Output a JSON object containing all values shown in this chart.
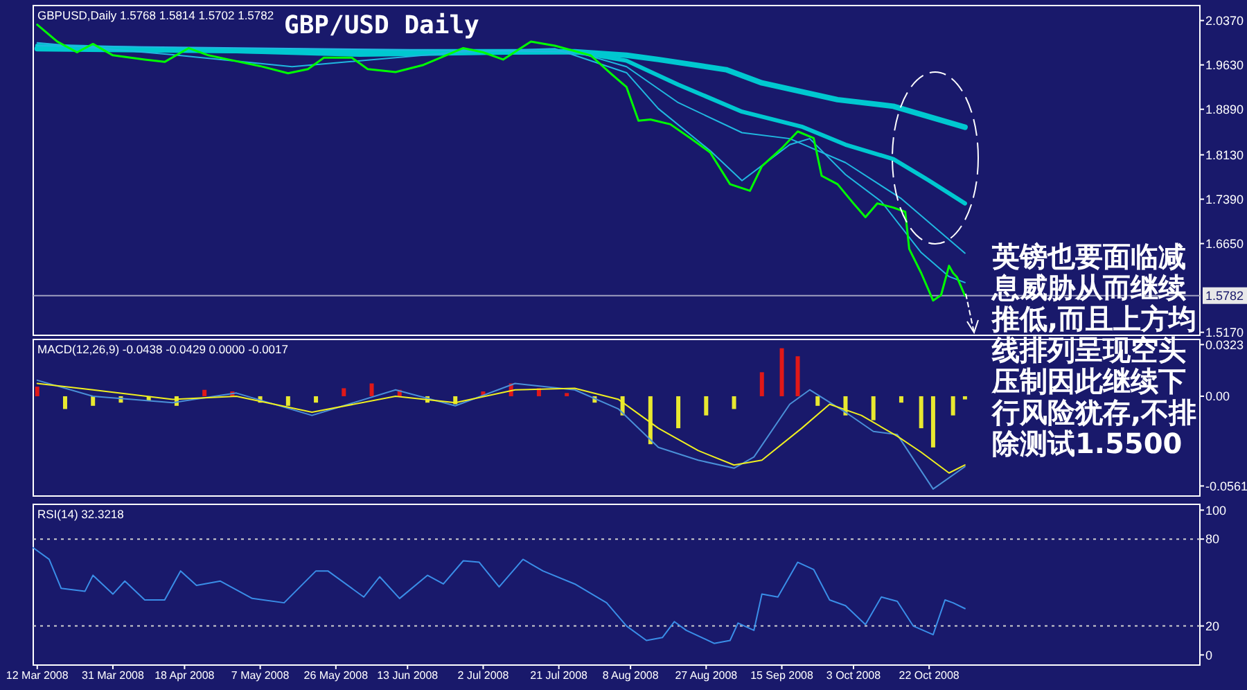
{
  "chart_data": [
    {
      "type": "line",
      "title": "GBP/USD Daily",
      "annotations": [
        "GBPUSD,Daily 1.5768 1.5814 1.5702 1.5782",
        "英镑也要面临减息威胁从而继续推低,而且上方均线排列呈现空头压制因此继续下行风险犹存,不排除测试1.5500"
      ],
      "xlim": [
        "2008-03-11",
        "2008-12-29"
      ],
      "ylim": [
        1.512,
        2.062
      ],
      "yticks": [
        {
          "value": 2.037,
          "label": "2.0370"
        },
        {
          "value": 1.963,
          "label": "1.9630"
        },
        {
          "value": 1.889,
          "label": "1.8890"
        },
        {
          "value": 1.813,
          "label": "1.8130"
        },
        {
          "value": 1.739,
          "label": "1.7390"
        },
        {
          "value": 1.665,
          "label": "1.6650"
        },
        {
          "value": 1.517,
          "label": "1.5170"
        }
      ],
      "tick_labels": "y",
      "ref_lines": [
        {
          "axis": "y",
          "value": 1.5782,
          "label": "1.5782",
          "color": "#a0a0c0"
        }
      ],
      "series": [
        {
          "color": "#00c8d0",
          "x": [
            "2008-03-12",
            "2008-06-01",
            "2008-07-25",
            "2008-08-07",
            "2008-08-15",
            "2008-09-01",
            "2008-09-10",
            "2008-09-29",
            "2008-10-13",
            "2008-10-31"
          ],
          "values": [
            1.99,
            1.985,
            1.985,
            1.979,
            1.972,
            1.955,
            1.933,
            1.905,
            1.894,
            1.859
          ]
        },
        {
          "color": "#00c8d0",
          "x": [
            "2008-03-12",
            "2008-06-01",
            "2008-07-25",
            "2008-08-07",
            "2008-08-20",
            "2008-09-05",
            "2008-09-20",
            "2008-10-01",
            "2008-10-13",
            "2008-10-22",
            "2008-10-31"
          ],
          "values": [
            1.995,
            1.98,
            1.985,
            1.97,
            1.93,
            1.885,
            1.86,
            1.83,
            1.806,
            1.77,
            1.732
          ]
        },
        {
          "color": "#20b8e0",
          "x": [
            "2008-03-12",
            "2008-07-25",
            "2008-08-07",
            "2008-08-20",
            "2008-09-05",
            "2008-09-17",
            "2008-10-01",
            "2008-10-15",
            "2008-10-31"
          ],
          "values": [
            1.995,
            1.985,
            1.96,
            1.9,
            1.85,
            1.84,
            1.8,
            1.74,
            1.649
          ]
        },
        {
          "color": "#20b8e0",
          "x": [
            "2008-03-12",
            "2008-04-15",
            "2008-05-15",
            "2008-06-27",
            "2008-07-20",
            "2008-08-07",
            "2008-08-15",
            "2008-08-28",
            "2008-09-05",
            "2008-09-17",
            "2008-09-22",
            "2008-10-01",
            "2008-10-10",
            "2008-10-20",
            "2008-10-27",
            "2008-10-31"
          ],
          "values": [
            2.0,
            1.98,
            1.96,
            1.985,
            1.99,
            1.95,
            1.89,
            1.82,
            1.77,
            1.83,
            1.84,
            1.78,
            1.735,
            1.65,
            1.61,
            1.6
          ]
        },
        {
          "color": "#00ff00",
          "x": [
            "2008-03-12",
            "2008-03-17",
            "2008-03-22",
            "2008-03-26",
            "2008-03-31",
            "2008-04-08",
            "2008-04-13",
            "2008-04-19",
            "2008-04-24",
            "2008-04-29",
            "2008-05-07",
            "2008-05-14",
            "2008-05-19",
            "2008-05-23",
            "2008-05-30",
            "2008-06-03",
            "2008-06-10",
            "2008-06-17",
            "2008-06-27",
            "2008-07-02",
            "2008-07-07",
            "2008-07-14",
            "2008-07-20",
            "2008-07-25",
            "2008-07-29",
            "2008-08-03",
            "2008-08-07",
            "2008-08-10",
            "2008-08-13",
            "2008-08-18",
            "2008-08-23",
            "2008-08-28",
            "2008-09-02",
            "2008-09-07",
            "2008-09-10",
            "2008-09-15",
            "2008-09-19",
            "2008-09-23",
            "2008-09-25",
            "2008-09-29",
            "2008-10-03",
            "2008-10-06",
            "2008-10-09",
            "2008-10-13",
            "2008-10-16",
            "2008-10-17",
            "2008-10-20",
            "2008-10-23",
            "2008-10-25",
            "2008-10-27",
            "2008-10-28",
            "2008-10-29",
            "2008-10-31"
          ],
          "values": [
            2.03,
            2.002,
            1.984,
            1.998,
            1.979,
            1.972,
            1.968,
            1.991,
            1.979,
            1.972,
            1.961,
            1.949,
            1.956,
            1.975,
            1.975,
            1.956,
            1.951,
            1.963,
            1.991,
            1.984,
            1.972,
            2.002,
            1.995,
            1.986,
            1.979,
            1.949,
            1.926,
            1.87,
            1.872,
            1.864,
            1.841,
            1.817,
            1.764,
            1.753,
            1.794,
            1.824,
            1.852,
            1.841,
            1.778,
            1.764,
            1.732,
            1.709,
            1.732,
            1.725,
            1.718,
            1.656,
            1.616,
            1.57,
            1.579,
            1.628,
            1.616,
            1.609,
            1.578
          ]
        }
      ]
    },
    {
      "type": "bar",
      "annotations": [
        "MACD(12,26,9) -0.0438 -0.0429 0.0000 -0.0017"
      ],
      "xlim": [
        "2008-03-11",
        "2008-12-29"
      ],
      "ylim": [
        -0.0624,
        0.0355
      ],
      "yticks": [
        0.0323,
        {
          "value": 0,
          "label": "0.00"
        },
        -0.0561
      ],
      "tick_labels": "y",
      "series": [
        {
          "x": [
            "2008-03-12",
            "2008-03-19",
            "2008-03-26",
            "2008-04-02",
            "2008-04-09",
            "2008-04-16",
            "2008-04-23",
            "2008-04-30",
            "2008-05-07",
            "2008-05-14",
            "2008-05-21",
            "2008-05-28",
            "2008-06-04",
            "2008-06-11",
            "2008-06-18",
            "2008-06-25",
            "2008-07-02",
            "2008-07-09",
            "2008-07-16",
            "2008-07-23",
            "2008-07-30",
            "2008-08-06",
            "2008-08-13",
            "2008-08-20",
            "2008-08-27",
            "2008-09-03",
            "2008-09-10",
            "2008-09-15",
            "2008-09-19",
            "2008-09-24",
            "2008-10-01",
            "2008-10-08",
            "2008-10-15",
            "2008-10-20",
            "2008-10-23",
            "2008-10-28",
            "2008-10-31"
          ],
          "values": [
            0.006,
            -0.008,
            -0.006,
            -0.004,
            -0.003,
            -0.006,
            0.004,
            0.003,
            -0.004,
            -0.006,
            -0.004,
            0.005,
            0.008,
            0.004,
            -0.004,
            -0.005,
            0.003,
            0.008,
            0.005,
            0.002,
            -0.004,
            -0.012,
            -0.03,
            -0.02,
            -0.012,
            -0.008,
            0.015,
            0.03,
            0.025,
            -0.006,
            -0.012,
            -0.015,
            -0.004,
            -0.02,
            -0.032,
            -0.012,
            -0.002
          ],
          "colors": [
            "#e01818",
            "#e8e830",
            "#e8e830",
            "#e8e830",
            "#e8e830",
            "#e8e830",
            "#e01818",
            "#e01818",
            "#e8e830",
            "#e8e830",
            "#e8e830",
            "#e01818",
            "#e01818",
            "#e01818",
            "#e8e830",
            "#e8e830",
            "#e01818",
            "#e01818",
            "#e01818",
            "#e01818",
            "#e8e830",
            "#e8e830",
            "#e8e830",
            "#e8e830",
            "#e8e830",
            "#e8e830",
            "#e01818",
            "#e01818",
            "#e01818",
            "#e8e830",
            "#e8e830",
            "#e8e830",
            "#e8e830",
            "#e8e830",
            "#e8e830",
            "#e8e830",
            "#e8e830"
          ]
        },
        {
          "type": "line",
          "color": "#4a90d8",
          "x": [
            "2008-03-12",
            "2008-03-26",
            "2008-04-15",
            "2008-05-01",
            "2008-05-20",
            "2008-06-10",
            "2008-06-25",
            "2008-07-10",
            "2008-07-25",
            "2008-08-05",
            "2008-08-15",
            "2008-08-25",
            "2008-09-03",
            "2008-09-08",
            "2008-09-17",
            "2008-09-22",
            "2008-10-01",
            "2008-10-08",
            "2008-10-14",
            "2008-10-23",
            "2008-10-31"
          ],
          "values": [
            0.01,
            0.0,
            -0.004,
            0.002,
            -0.012,
            0.004,
            -0.006,
            0.008,
            0.004,
            -0.008,
            -0.032,
            -0.04,
            -0.045,
            -0.038,
            -0.005,
            0.004,
            -0.01,
            -0.022,
            -0.024,
            -0.058,
            -0.044
          ]
        },
        {
          "type": "line",
          "color": "#f0f020",
          "x": [
            "2008-03-12",
            "2008-03-26",
            "2008-04-15",
            "2008-05-01",
            "2008-05-20",
            "2008-06-10",
            "2008-06-25",
            "2008-07-10",
            "2008-07-25",
            "2008-08-05",
            "2008-08-15",
            "2008-08-25",
            "2008-09-03",
            "2008-09-10",
            "2008-09-20",
            "2008-09-27",
            "2008-10-05",
            "2008-10-14",
            "2008-10-20",
            "2008-10-27",
            "2008-10-31"
          ],
          "values": [
            0.008,
            0.004,
            -0.002,
            0.0,
            -0.01,
            0.0,
            -0.004,
            0.004,
            0.005,
            -0.002,
            -0.02,
            -0.034,
            -0.043,
            -0.04,
            -0.02,
            -0.005,
            -0.012,
            -0.025,
            -0.035,
            -0.048,
            -0.043
          ]
        }
      ]
    },
    {
      "type": "line",
      "annotations": [
        "RSI(14) 32.3218"
      ],
      "xlim": [
        "2008-03-11",
        "2008-12-29"
      ],
      "xticks": [
        {
          "value": "2008-03-12",
          "label": "12 Mar 2008"
        },
        {
          "value": "2008-03-31",
          "label": "31 Mar 2008"
        },
        {
          "value": "2008-04-18",
          "label": "18 Apr 2008"
        },
        {
          "value": "2008-05-07",
          "label": "7 May 2008"
        },
        {
          "value": "2008-05-26",
          "label": "26 May 2008"
        },
        {
          "value": "2008-06-13",
          "label": "13 Jun 2008"
        },
        {
          "value": "2008-07-02",
          "label": "2 Jul 2008"
        },
        {
          "value": "2008-07-21",
          "label": "21 Jul 2008"
        },
        {
          "value": "2008-08-08",
          "label": "8 Aug 2008"
        },
        {
          "value": "2008-08-27",
          "label": "27 Aug 2008"
        },
        {
          "value": "2008-09-15",
          "label": "15 Sep 2008"
        },
        {
          "value": "2008-10-03",
          "label": "3 Oct 2008"
        },
        {
          "value": "2008-10-22",
          "label": "22 Oct 2008"
        }
      ],
      "ylim": [
        -7,
        104
      ],
      "yticks": [
        100,
        80,
        20,
        0
      ],
      "ref_lines": [
        {
          "axis": "y",
          "value": 80,
          "line_style": "dotted",
          "color": "#d0d0d0"
        },
        {
          "axis": "y",
          "value": 20,
          "line_style": "dotted",
          "color": "#d0d0d0"
        }
      ],
      "series": [
        {
          "color": "#3a8ee8",
          "x": [
            "2008-03-11",
            "2008-03-15",
            "2008-03-18",
            "2008-03-24",
            "2008-03-26",
            "2008-03-31",
            "2008-04-03",
            "2008-04-08",
            "2008-04-13",
            "2008-04-17",
            "2008-04-21",
            "2008-04-27",
            "2008-05-05",
            "2008-05-13",
            "2008-05-21",
            "2008-05-24",
            "2008-06-02",
            "2008-06-06",
            "2008-06-11",
            "2008-06-18",
            "2008-06-22",
            "2008-06-27",
            "2008-07-01",
            "2008-07-06",
            "2008-07-12",
            "2008-07-17",
            "2008-07-25",
            "2008-08-02",
            "2008-08-07",
            "2008-08-12",
            "2008-08-16",
            "2008-08-19",
            "2008-08-22",
            "2008-08-29",
            "2008-09-02",
            "2008-09-04",
            "2008-09-08",
            "2008-09-10",
            "2008-09-14",
            "2008-09-19",
            "2008-09-23",
            "2008-09-27",
            "2008-10-01",
            "2008-10-06",
            "2008-10-10",
            "2008-10-14",
            "2008-10-18",
            "2008-10-23",
            "2008-10-26",
            "2008-10-28",
            "2008-10-31"
          ],
          "values": [
            74,
            66,
            46,
            44,
            55,
            42,
            51,
            38,
            38,
            58,
            48,
            51,
            39,
            36,
            58,
            58,
            40,
            54,
            39,
            55,
            49,
            65,
            64,
            47,
            66,
            58,
            49,
            36,
            20,
            10,
            12,
            23,
            17,
            8,
            10,
            22,
            17,
            42,
            40,
            64,
            59,
            38,
            34,
            21,
            40,
            37,
            20,
            14,
            38,
            36,
            32
          ]
        }
      ]
    }
  ]
}
